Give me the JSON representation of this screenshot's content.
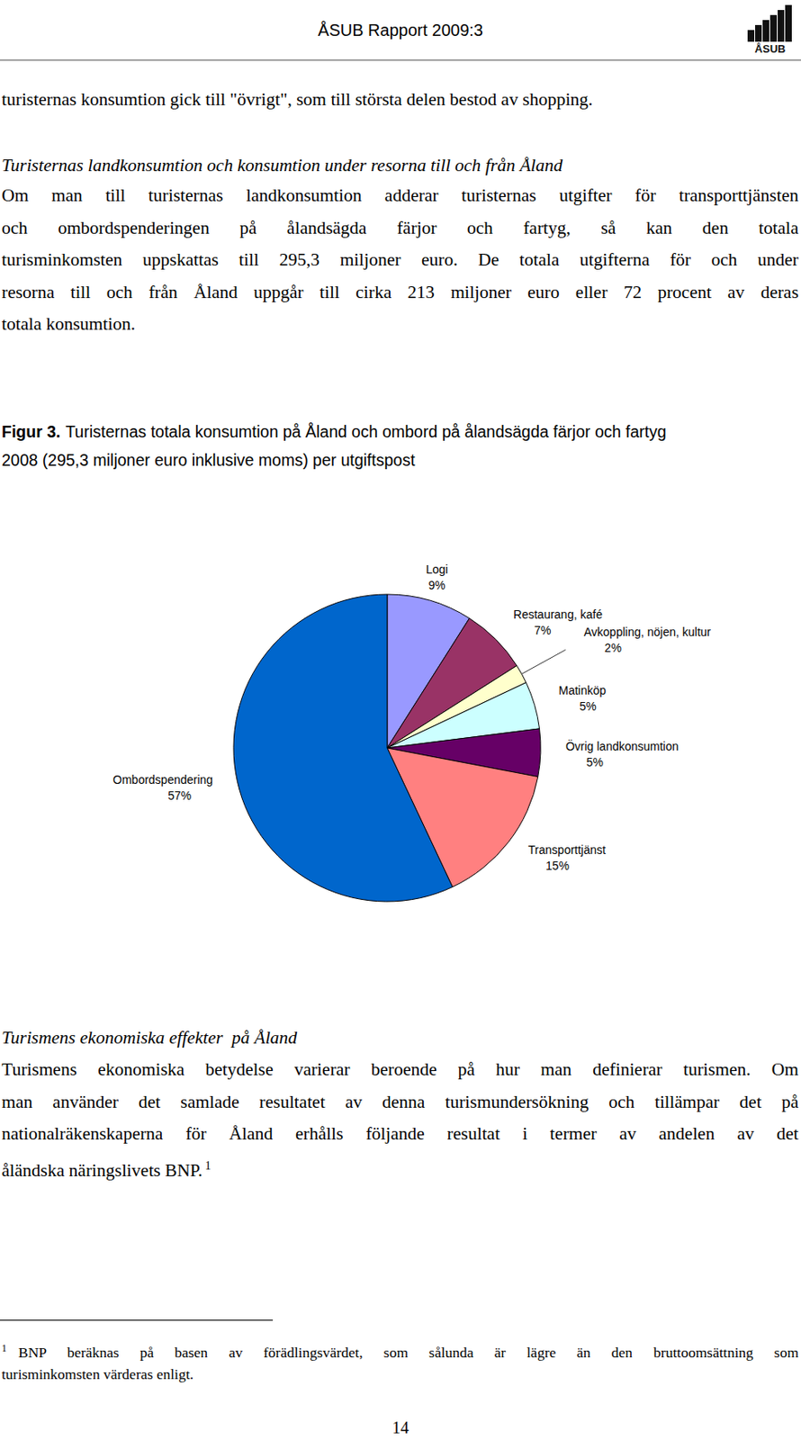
{
  "header": {
    "title": "ÅSUB Rapport 2009:3",
    "logo": "ÅSUB"
  },
  "section1": {
    "intro": {
      "lines": [
        "turisternas konsumtion gick till \"övrigt\", som till största delen bestod av shopping."
      ]
    },
    "heading": "Turisternas landkonsumtion och konsumtion under resorna till och från Åland",
    "paragraph": {
      "lines": [
        "Om man till turisternas landkonsumtion adderar turisternas utgifter för transporttjänsten",
        "och ombordspenderingen på ålandsägda färjor och fartyg, så kan den totala",
        "turisminkomsten uppskattas till 295,3 miljoner euro. De totala utgifterna för och under",
        "resorna till och från Åland uppgår till cirka 213 miljoner euro eller 72 procent av deras",
        "totala konsumtion."
      ]
    }
  },
  "figure": {
    "label": "Figur 3.",
    "caption_lines": [
      "Turisternas totala konsumtion på Åland och ombord på ålandsägda färjor och fartyg",
      "2008 (295,3 miljoner euro inklusive moms) per utgiftspost"
    ]
  },
  "chart_data": {
    "type": "pie",
    "categories": [
      "Logi",
      "Restaurang, kafé",
      "Avkoppling, nöjen, kultur",
      "Matinköp",
      "Övrig landkonsumtion",
      "Transporttjänst",
      "Ombordspendering"
    ],
    "values": [
      9,
      7,
      2,
      5,
      5,
      15,
      57
    ],
    "value_labels": [
      "9%",
      "7%",
      "2%",
      "5%",
      "5%",
      "15%",
      "57%"
    ],
    "colors": [
      "#9999FF",
      "#993366",
      "#FFFFCC",
      "#CCFFFF",
      "#660066",
      "#FF8080",
      "#0066CC"
    ],
    "data_labels": true
  },
  "section2": {
    "heading": "Turismens ekonomiska effekter  på Åland",
    "paragraph": {
      "lines": [
        "Turismens ekonomiska betydelse varierar beroende på hur man definierar turismen. Om",
        "man använder det samlade resultatet av denna turismundersökning och tillämpar det på",
        "nationalräkenskaperna för Åland erhålls följande resultat i termer av andelen av det",
        "åländska näringslivets BNP."
      ],
      "footnote_ref": "1"
    }
  },
  "footnote": {
    "marker": "1",
    "lines": [
      "BNP beräknas på basen av förädlingsvärdet, som sålunda är lägre än den bruttoomsättning som",
      "turisminkomsten värderas enligt."
    ]
  },
  "page_number": 14
}
